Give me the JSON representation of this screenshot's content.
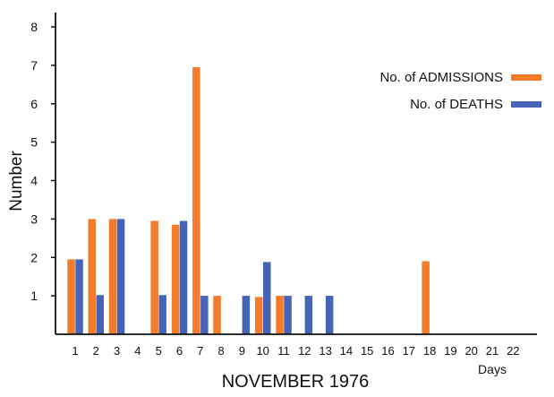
{
  "chart_data": {
    "type": "bar",
    "title": "",
    "xlabel": "NOVEMBER 1976",
    "ylabel": "Number",
    "x_unit_label": "Days",
    "categories": [
      "1",
      "2",
      "3",
      "4",
      "5",
      "6",
      "7",
      "8",
      "9",
      "10",
      "11",
      "12",
      "13",
      "14",
      "15",
      "16",
      "17",
      "18",
      "19",
      "20",
      "21",
      "22"
    ],
    "ylim": [
      0,
      8
    ],
    "yticks": [
      1,
      2,
      3,
      4,
      5,
      6,
      7,
      8
    ],
    "grid": false,
    "legend_position": "top-right",
    "series": [
      {
        "name": "No. of ADMISSIONS",
        "color": "#f47b2a",
        "values": [
          1.95,
          3,
          3,
          0,
          2.95,
          2.85,
          6.95,
          1,
          0,
          0.97,
          1,
          0,
          0,
          0,
          0,
          0,
          0,
          1.9,
          0,
          0,
          0,
          0
        ]
      },
      {
        "name": "No. of DEATHS",
        "color": "#4564b8",
        "values": [
          1.95,
          1.02,
          3,
          0,
          1.02,
          2.95,
          1,
          0,
          1,
          1.88,
          1,
          1,
          1,
          0,
          0,
          0,
          0,
          0,
          0,
          0,
          0,
          0
        ]
      }
    ]
  }
}
